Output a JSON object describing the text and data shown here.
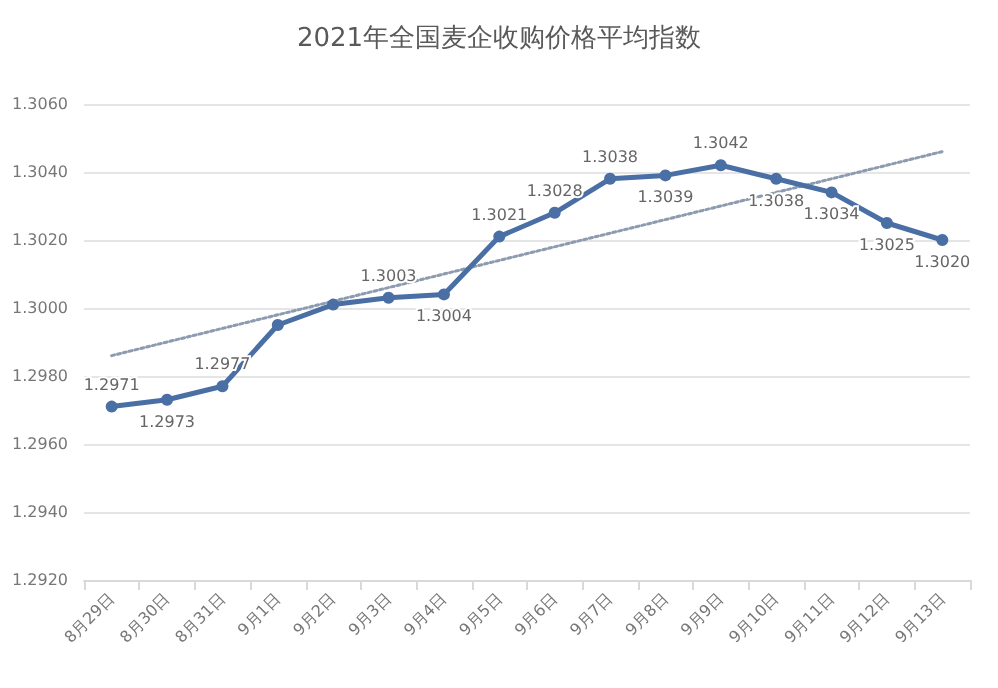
{
  "chart_data": {
    "type": "line",
    "title": "2021年全国麦企收购价格平均指数",
    "categories": [
      "8月29日",
      "8月30日",
      "8月31日",
      "9月1日",
      "9月2日",
      "9月3日",
      "9月4日",
      "9月5日",
      "9月6日",
      "9月7日",
      "9月8日",
      "9月9日",
      "9月10日",
      "9月11日",
      "9月12日",
      "9月13日"
    ],
    "series": [
      {
        "color": "#4a6fa5",
        "values": [
          1.2971,
          1.2973,
          1.2977,
          1.2995,
          1.3001,
          1.3003,
          1.3004,
          1.3021,
          1.3028,
          1.3038,
          1.3039,
          1.3042,
          1.3038,
          1.3034,
          1.3025,
          1.302
        ],
        "value_labels": [
          "1.2971",
          "1.2973",
          "1.2977",
          null,
          null,
          "1.3003",
          "1.3004",
          "1.3021",
          "1.3028",
          "1.3038",
          "1.3039",
          "1.3042",
          "1.3038",
          "1.3034",
          "1.3025",
          "1.3020"
        ],
        "marker": "circle",
        "line_style": "solid"
      },
      {
        "type": "line",
        "color": "#8c9bb0",
        "x": [
          "8月29日",
          "9月13日"
        ],
        "values": [
          1.2986,
          1.3046
        ],
        "marker": "none",
        "line_style": "dotted"
      }
    ],
    "ylim": [
      1.292,
      1.306
    ],
    "yticks": [
      {
        "value": 1.292,
        "label": "1.2920"
      },
      {
        "value": 1.294,
        "label": "1.2940"
      },
      {
        "value": 1.296,
        "label": "1.2960"
      },
      {
        "value": 1.298,
        "label": "1.2980"
      },
      {
        "value": 1.3,
        "label": "1.3000"
      },
      {
        "value": 1.302,
        "label": "1.3020"
      },
      {
        "value": 1.304,
        "label": "1.3040"
      },
      {
        "value": 1.306,
        "label": "1.3060"
      }
    ],
    "grid": "y"
  }
}
